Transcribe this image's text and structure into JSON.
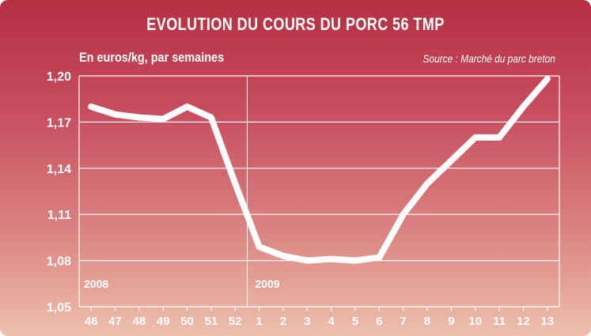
{
  "chart_data": {
    "type": "line",
    "title": "EVOLUTION DU COURS DU PORC 56 TMP",
    "ylabel": "En euros/kg, par semaines",
    "source": "Source : Marché du parc breton",
    "categories": [
      "46",
      "47",
      "48",
      "49",
      "50",
      "51",
      "52",
      "1",
      "2",
      "3",
      "4",
      "5",
      "6",
      "7",
      "8",
      "9",
      "10",
      "11",
      "12",
      "13"
    ],
    "year_labels": [
      {
        "text": "2008",
        "at_category": "46"
      },
      {
        "text": "2009",
        "at_category": "1"
      }
    ],
    "series": [
      {
        "values": [
          1.18,
          1.175,
          1.173,
          1.172,
          1.18,
          1.173,
          1.13,
          1.089,
          1.083,
          1.08,
          1.081,
          1.08,
          1.082,
          1.11,
          1.13,
          1.145,
          1.16,
          1.16,
          1.18,
          1.198
        ]
      }
    ],
    "ylim": [
      1.05,
      1.2
    ],
    "yticks": [
      "1,05",
      "1,08",
      "1,11",
      "1,14",
      "1,17",
      "1,20"
    ],
    "ytick_values": [
      1.05,
      1.08,
      1.11,
      1.14,
      1.17,
      1.2
    ],
    "year_divider_after": "52",
    "grid": true,
    "colors": {
      "line": "#ffffff",
      "grid": "#ffffff",
      "text": "#ffffff"
    }
  }
}
